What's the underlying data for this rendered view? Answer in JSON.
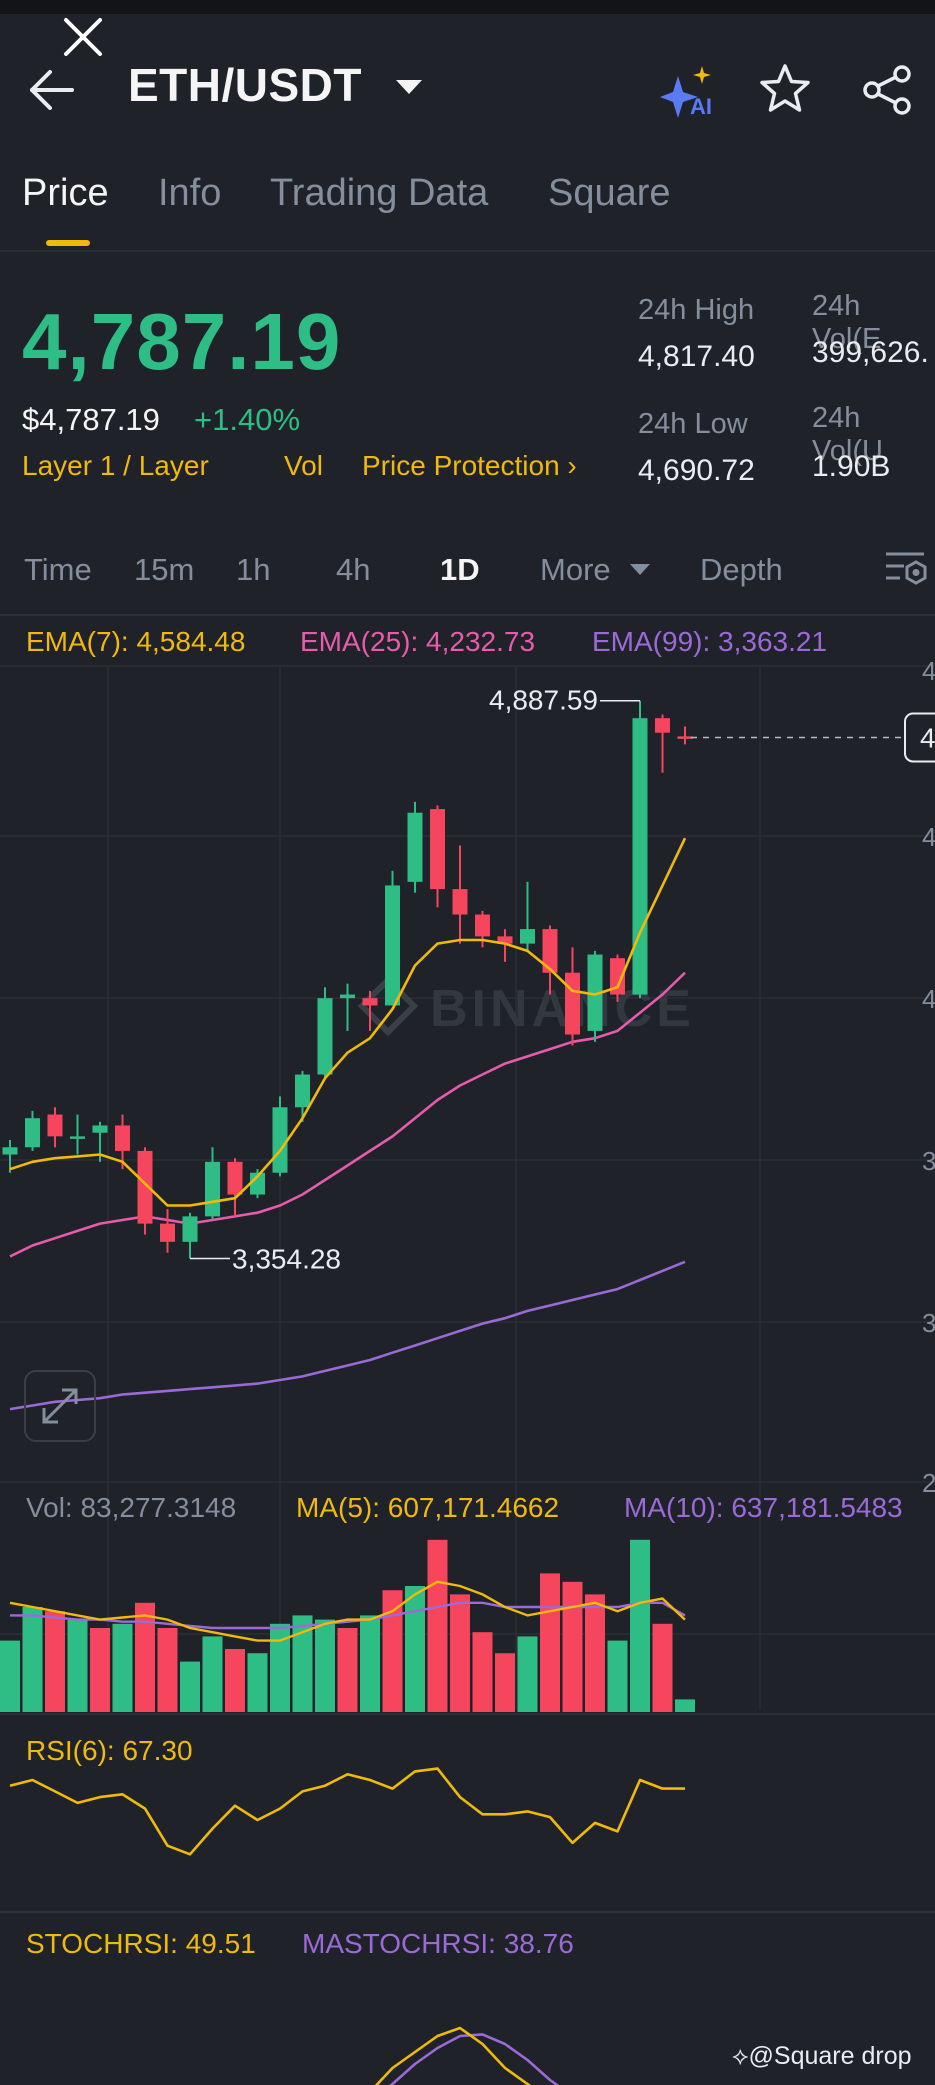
{
  "header": {
    "pair": "ETH/USDT"
  },
  "tabs": [
    "Price",
    "Info",
    "Trading Data",
    "Square"
  ],
  "active_tab": "Price",
  "price": {
    "last": "4,787.19",
    "usd": "$4,787.19",
    "change_pct": "+1.40%",
    "tags": [
      "Layer 1 / Layer",
      "Vol",
      "Price Protection"
    ],
    "high_label": "24h High",
    "high_value": "4,817.40",
    "low_label": "24h Low",
    "low_value": "4,690.72",
    "vol_base_label": "24h Vol(E",
    "vol_base_value": "399,626.",
    "vol_quote_label": "24h Vol(U",
    "vol_quote_value": "1.90B"
  },
  "timeframes": [
    "Time",
    "15m",
    "1h",
    "4h",
    "1D",
    "More",
    "Depth"
  ],
  "active_timeframe": "1D",
  "indicators": {
    "ema7": "EMA(7): 4,584.48",
    "ema25": "EMA(25): 4,232.73",
    "ema99": "EMA(99): 3,363.21",
    "vol": "Vol: 83,277.3148",
    "ma5": "MA(5): 607,171.4662",
    "ma10": "MA(10): 637,181.5483",
    "rsi": "RSI(6): 67.30",
    "stochrsi": "STOCHRSI: 49.51",
    "mastochrsi": "MASTOCHRSI: 38.76"
  },
  "chart_data": {
    "type": "candlestick",
    "high_label": "4,887.59",
    "low_label": "3,354.28",
    "watermark": "BINANCE",
    "axis_partial_labels": [
      "4",
      "4",
      "4",
      "3",
      "3",
      "2"
    ],
    "current_price_tag": "4",
    "candles": [
      {
        "o": 3640,
        "h": 3680,
        "l": 3590,
        "c": 3660
      },
      {
        "o": 3660,
        "h": 3760,
        "l": 3650,
        "c": 3740
      },
      {
        "o": 3750,
        "h": 3770,
        "l": 3660,
        "c": 3690
      },
      {
        "o": 3690,
        "h": 3750,
        "l": 3640,
        "c": 3690
      },
      {
        "o": 3700,
        "h": 3730,
        "l": 3620,
        "c": 3720
      },
      {
        "o": 3720,
        "h": 3750,
        "l": 3600,
        "c": 3650
      },
      {
        "o": 3650,
        "h": 3660,
        "l": 3420,
        "c": 3450
      },
      {
        "o": 3450,
        "h": 3490,
        "l": 3370,
        "c": 3400
      },
      {
        "o": 3400,
        "h": 3480,
        "l": 3354,
        "c": 3470
      },
      {
        "o": 3470,
        "h": 3660,
        "l": 3460,
        "c": 3620
      },
      {
        "o": 3620,
        "h": 3630,
        "l": 3470,
        "c": 3530
      },
      {
        "o": 3530,
        "h": 3600,
        "l": 3520,
        "c": 3590
      },
      {
        "o": 3590,
        "h": 3800,
        "l": 3580,
        "c": 3770
      },
      {
        "o": 3770,
        "h": 3870,
        "l": 3730,
        "c": 3860
      },
      {
        "o": 3860,
        "h": 4100,
        "l": 3850,
        "c": 4070
      },
      {
        "o": 4070,
        "h": 4110,
        "l": 3980,
        "c": 4080
      },
      {
        "o": 4070,
        "h": 4090,
        "l": 3980,
        "c": 4050
      },
      {
        "o": 4050,
        "h": 4420,
        "l": 4050,
        "c": 4380
      },
      {
        "o": 4390,
        "h": 4610,
        "l": 4360,
        "c": 4580
      },
      {
        "o": 4590,
        "h": 4600,
        "l": 4320,
        "c": 4370
      },
      {
        "o": 4370,
        "h": 4490,
        "l": 4220,
        "c": 4300
      },
      {
        "o": 4300,
        "h": 4310,
        "l": 4210,
        "c": 4240
      },
      {
        "o": 4240,
        "h": 4260,
        "l": 4170,
        "c": 4220
      },
      {
        "o": 4220,
        "h": 4390,
        "l": 4200,
        "c": 4260
      },
      {
        "o": 4260,
        "h": 4270,
        "l": 4080,
        "c": 4140
      },
      {
        "o": 4140,
        "h": 4210,
        "l": 3940,
        "c": 3970
      },
      {
        "o": 3980,
        "h": 4200,
        "l": 3950,
        "c": 4190
      },
      {
        "o": 4180,
        "h": 4190,
        "l": 4060,
        "c": 4080
      },
      {
        "o": 4080,
        "h": 4888,
        "l": 4070,
        "c": 4840
      },
      {
        "o": 4840,
        "h": 4850,
        "l": 4690,
        "c": 4800
      },
      {
        "o": 4790,
        "h": 4817,
        "l": 4768,
        "c": 4787
      }
    ],
    "ema7": [
      3600,
      3620,
      3630,
      3635,
      3640,
      3620,
      3560,
      3500,
      3500,
      3510,
      3520,
      3580,
      3650,
      3740,
      3850,
      3920,
      3960,
      4040,
      4160,
      4220,
      4230,
      4230,
      4220,
      4200,
      4150,
      4090,
      4080,
      4100,
      4250,
      4380,
      4510
    ],
    "ema25": [
      3360,
      3390,
      3410,
      3430,
      3450,
      3460,
      3470,
      3460,
      3450,
      3460,
      3470,
      3480,
      3500,
      3530,
      3570,
      3610,
      3650,
      3690,
      3740,
      3790,
      3830,
      3860,
      3890,
      3910,
      3930,
      3950,
      3960,
      3980,
      4030,
      4080,
      4140
    ],
    "ema99": [
      2940,
      2950,
      2960,
      2965,
      2970,
      2980,
      2985,
      2990,
      2995,
      3000,
      3005,
      3010,
      3020,
      3030,
      3045,
      3060,
      3075,
      3095,
      3115,
      3135,
      3155,
      3175,
      3190,
      3210,
      3225,
      3240,
      3255,
      3270,
      3295,
      3320,
      3345
    ],
    "volume": [
      [
        34,
        "g"
      ],
      [
        50,
        "g"
      ],
      [
        48,
        "r"
      ],
      [
        44,
        "g"
      ],
      [
        40,
        "r"
      ],
      [
        42,
        "g"
      ],
      [
        52,
        "r"
      ],
      [
        40,
        "r"
      ],
      [
        24,
        "g"
      ],
      [
        36,
        "g"
      ],
      [
        30,
        "r"
      ],
      [
        28,
        "g"
      ],
      [
        42,
        "g"
      ],
      [
        46,
        "g"
      ],
      [
        44,
        "g"
      ],
      [
        40,
        "r"
      ],
      [
        46,
        "g"
      ],
      [
        58,
        "r"
      ],
      [
        60,
        "g"
      ],
      [
        82,
        "r"
      ],
      [
        56,
        "r"
      ],
      [
        38,
        "r"
      ],
      [
        28,
        "r"
      ],
      [
        36,
        "g"
      ],
      [
        66,
        "r"
      ],
      [
        62,
        "r"
      ],
      [
        56,
        "r"
      ],
      [
        34,
        "g"
      ],
      [
        82,
        "g"
      ],
      [
        42,
        "r"
      ],
      [
        6,
        "g"
      ]
    ],
    "vol_ma5": [
      52,
      50,
      48,
      46,
      44,
      45,
      46,
      44,
      40,
      38,
      36,
      34,
      34,
      38,
      42,
      44,
      44,
      48,
      56,
      62,
      60,
      56,
      50,
      46,
      48,
      50,
      52,
      48,
      52,
      54,
      44
    ],
    "vol_ma10": [
      46,
      46,
      45,
      44,
      44,
      43,
      43,
      42,
      41,
      40,
      40,
      40,
      40,
      41,
      42,
      43,
      44,
      46,
      48,
      50,
      52,
      52,
      50,
      50,
      50,
      50,
      50,
      50,
      52,
      52,
      46
    ],
    "rsi": [
      62,
      66,
      58,
      50,
      54,
      56,
      46,
      20,
      14,
      32,
      48,
      38,
      46,
      58,
      62,
      70,
      66,
      60,
      72,
      74,
      54,
      42,
      42,
      44,
      40,
      22,
      36,
      30,
      66,
      60,
      60
    ],
    "stoch": [
      0,
      0,
      0,
      0,
      0,
      0,
      0,
      0,
      0,
      0,
      0,
      0,
      0,
      0,
      0,
      0,
      10,
      40,
      60,
      80,
      90,
      70,
      40,
      20,
      0,
      0,
      0,
      0,
      0,
      0,
      0
    ],
    "mastoch": [
      0,
      0,
      0,
      0,
      0,
      0,
      0,
      0,
      0,
      0,
      0,
      0,
      0,
      0,
      0,
      0,
      0,
      20,
      45,
      65,
      80,
      82,
      70,
      50,
      25,
      5,
      0,
      0,
      0,
      0,
      0
    ]
  },
  "watermark_text": "@Square drop",
  "colors": {
    "up": "#2ebd85",
    "down": "#f6465d",
    "ema7": "#f0b90b",
    "ema25": "#e75bac",
    "ema99": "#9c6ad8",
    "accent": "#f0b90b"
  }
}
